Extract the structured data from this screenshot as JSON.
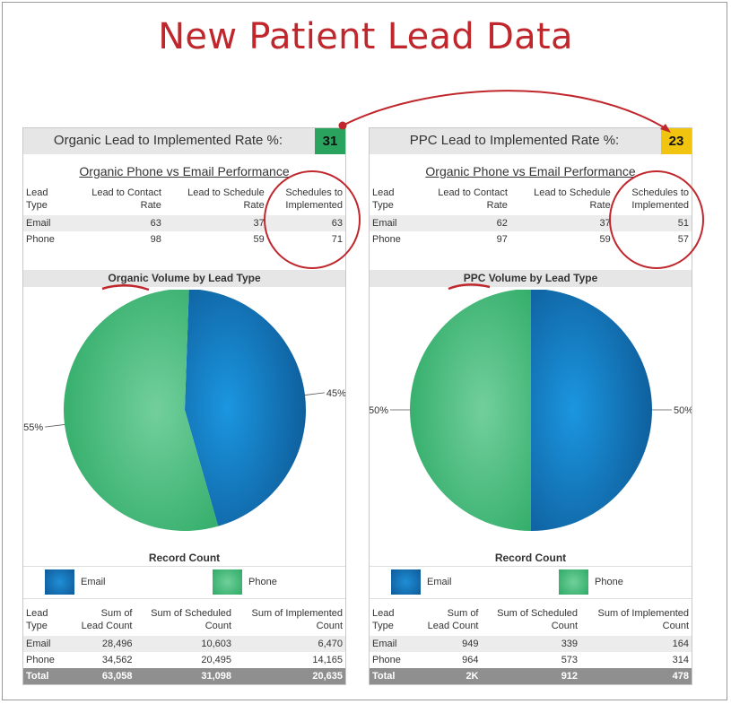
{
  "title": "New Patient Lead Data",
  "colors": {
    "red": "#c0272d",
    "green": "#2fb36a",
    "yellow": "#f1c40f",
    "email": "#1a73b5",
    "phone": "#3cb878"
  },
  "panels": [
    {
      "rate_label": "Organic Lead to Implemented Rate %:",
      "rate_value": "31",
      "rate_color": "#29a35e",
      "perf_title": "Organic Phone vs Email Performance",
      "perf_headers": [
        "Lead\nType",
        "Lead to Contact\nRate",
        "Lead to Schedule\nRate",
        "Schedules to\nImplemented"
      ],
      "perf_rows": [
        [
          "Email",
          "63",
          "37",
          "63"
        ],
        [
          "Phone",
          "98",
          "59",
          "71"
        ]
      ],
      "volume_title": "Organic Volume by Lead Type",
      "record_count_label": "Record Count",
      "legend": [
        "Email",
        "Phone"
      ],
      "bottom_headers": [
        "Lead\nType",
        "Sum of\nLead Count",
        "Sum of Scheduled\nCount",
        "Sum of Implemented\nCount"
      ],
      "bottom_rows": [
        [
          "Email",
          "28,496",
          "10,603",
          "6,470"
        ],
        [
          "Phone",
          "34,562",
          "20,495",
          "14,165"
        ]
      ],
      "total_row": [
        "Total",
        "63,058",
        "31,098",
        "20,635"
      ]
    },
    {
      "rate_label": "PPC Lead to Implemented Rate %:",
      "rate_value": "23",
      "rate_color": "#f1c40f",
      "perf_title": "Organic Phone vs Email Performance",
      "perf_headers": [
        "Lead\nType",
        "Lead to Contact\nRate",
        "Lead to Schedule\nRate",
        "Schedules to\nImplemented"
      ],
      "perf_rows": [
        [
          "Email",
          "62",
          "37",
          "51"
        ],
        [
          "Phone",
          "97",
          "59",
          "57"
        ]
      ],
      "volume_title": "PPC Volume by Lead Type",
      "record_count_label": "Record Count",
      "legend": [
        "Email",
        "Phone"
      ],
      "bottom_headers": [
        "Lead\nType",
        "Sum of\nLead Count",
        "Sum of Scheduled\nCount",
        "Sum of Implemented\nCount"
      ],
      "bottom_rows": [
        [
          "Email",
          "949",
          "339",
          "164"
        ],
        [
          "Phone",
          "964",
          "573",
          "314"
        ]
      ],
      "total_row": [
        "Total",
        "2K",
        "912",
        "478"
      ]
    }
  ],
  "chart_data": [
    {
      "type": "pie",
      "title": "Organic Volume by Lead Type",
      "xlabel": "Record Count",
      "categories": [
        "Email",
        "Phone"
      ],
      "values": [
        45,
        55
      ],
      "data_labels": [
        "45%",
        "55%"
      ],
      "legend": "bottom"
    },
    {
      "type": "pie",
      "title": "PPC Volume by Lead Type",
      "xlabel": "Record Count",
      "categories": [
        "Email",
        "Phone"
      ],
      "values": [
        50,
        50
      ],
      "data_labels": [
        "50%",
        "50%"
      ],
      "legend": "bottom"
    }
  ]
}
